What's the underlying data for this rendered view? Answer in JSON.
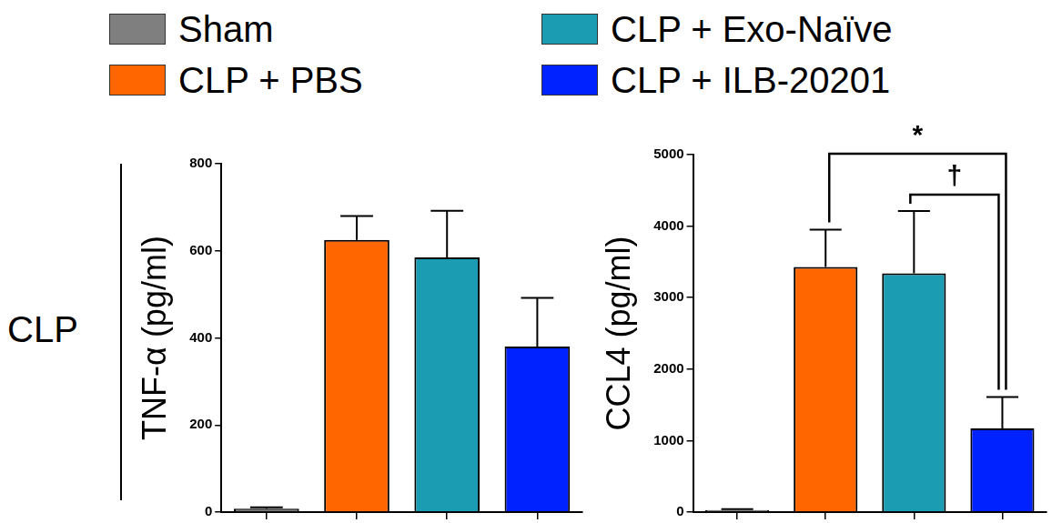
{
  "row_label": "CLP",
  "chart_data": [
    {
      "type": "bar",
      "y_label": "TNF-α (pg/ml)",
      "categories": [
        "Sham",
        "CLP + PBS",
        "CLP + Exo-Naïve",
        "CLP + ILB-20201"
      ],
      "values": [
        8,
        625,
        585,
        380
      ],
      "errors": [
        3,
        55,
        107,
        112
      ],
      "colors": [
        "#7f7f7f",
        "#ff6600",
        "#1b9cb3",
        "#0022ff"
      ],
      "ylim": [
        0,
        800
      ],
      "yticks": [
        0,
        200,
        400,
        600,
        800
      ],
      "grid": false,
      "tick_labels": "y",
      "legend": "top"
    },
    {
      "type": "bar",
      "y_label": "CCL4 (pg/ml)",
      "categories": [
        "Sham",
        "CLP + PBS",
        "CLP + Exo-Naïve",
        "CLP + ILB-20201"
      ],
      "values": [
        30,
        3430,
        3340,
        1170
      ],
      "errors": [
        10,
        520,
        870,
        440
      ],
      "colors": [
        "#7f7f7f",
        "#ff6600",
        "#1b9cb3",
        "#0022ff"
      ],
      "ylim": [
        0,
        5000
      ],
      "yticks": [
        0,
        1000,
        2000,
        3000,
        4000,
        5000
      ],
      "grid": false,
      "tick_labels": "y",
      "annotations": [
        {
          "text": "*",
          "from": "CLP + PBS",
          "to": "CLP + ILB-20201"
        },
        {
          "text": "†",
          "from": "CLP + Exo-Naïve",
          "to": "CLP + ILB-20201"
        }
      ]
    }
  ]
}
